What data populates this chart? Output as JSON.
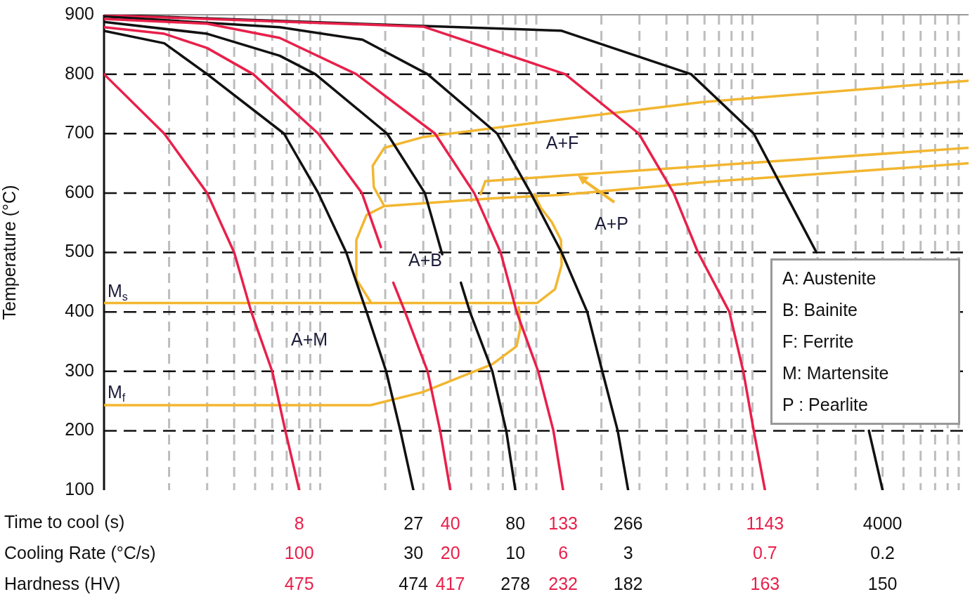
{
  "chart_data": {
    "type": "line",
    "xlabel": "Time to cool (s)",
    "ylabel": "Temperature (°C)",
    "log": "x",
    "xlim": [
      1,
      10000
    ],
    "ylim": [
      100,
      900
    ],
    "xticks": [
      8,
      27,
      40,
      80,
      133,
      266,
      1143,
      4000
    ],
    "yticks": [
      100,
      200,
      300,
      400,
      500,
      600,
      700,
      800,
      900
    ],
    "grid": true,
    "legend": false,
    "marker": "none",
    "line_style": "solid",
    "series": [
      {
        "color": "#e8204a",
        "x": [
          1,
          1.9,
          3,
          4,
          4.8,
          6,
          6.9,
          8
        ],
        "values": [
          800,
          700,
          600,
          500,
          400,
          300,
          200,
          100
        ]
      },
      {
        "color": "#111111",
        "x": [
          1,
          1.9,
          3,
          6.8,
          9.8,
          13.2,
          16.4,
          20.2,
          23.5,
          27
        ],
        "values": [
          873,
          852,
          800,
          700,
          600,
          500,
          400,
          300,
          200,
          100
        ]
      },
      {
        "color": "#e8204a",
        "x": [
          1,
          1.9,
          3,
          4.9,
          9.8,
          15.6,
          19.1,
          20.5,
          21.8,
          24.7,
          31.4,
          35.9,
          40
        ],
        "values": [
          879,
          868,
          844,
          800,
          700,
          600,
          509,
          null,
          449,
          400,
          300,
          200,
          100
        ]
      },
      {
        "color": "#111111",
        "x": [
          1,
          3,
          6.5,
          9.5,
          20.4,
          30.5,
          36.7,
          40,
          44.8,
          49.3,
          62.6,
          72.6,
          80
        ],
        "values": [
          888,
          868,
          831,
          800,
          700,
          600,
          497,
          null,
          449,
          400,
          300,
          200,
          100
        ]
      },
      {
        "color": "#e8204a",
        "x": [
          1,
          3,
          6.5,
          14.7,
          34,
          51.6,
          68.4,
          81.1,
          102,
          120,
          133
        ],
        "values": [
          893,
          885,
          861,
          800,
          700,
          600,
          500,
          400,
          300,
          200,
          100
        ]
      },
      {
        "color": "#111111",
        "x": [
          1,
          6.5,
          15.7,
          31.4,
          65.9,
          94.2,
          131,
          172,
          202,
          238,
          266
        ],
        "values": [
          897,
          879,
          858,
          800,
          700,
          600,
          500,
          400,
          300,
          200,
          100
        ]
      },
      {
        "color": "#e8204a",
        "x": [
          1,
          30,
          136,
          298,
          432,
          560,
          782,
          907,
          1014,
          1143
        ],
        "values": [
          899,
          880,
          800,
          700,
          600,
          500,
          400,
          300,
          200,
          100
        ]
      },
      {
        "color": "#111111",
        "x": [
          1,
          131,
          520,
          1014,
          1416,
          1978,
          2472,
          2979,
          3458,
          4000
        ],
        "values": [
          900,
          873,
          800,
          700,
          600,
          500,
          null,
          null,
          200,
          100
        ]
      },
      {
        "color": "#f2b630",
        "x": [
          1,
          101,
          122,
          131,
          130,
          118,
          105,
          97.7
        ],
        "values": [
          415,
          415,
          438,
          479,
          521,
          551,
          575,
          598
        ]
      },
      {
        "color": "#f2b630",
        "x": [
          1,
          17.1,
          29.8,
          62.6,
          81,
          84.3,
          83
        ],
        "values": [
          243,
          243,
          265,
          312,
          342,
          372,
          408
        ]
      },
      {
        "color": "#f2b630",
        "x": [
          17.1,
          14.7,
          14.7,
          16.4,
          19.8,
          62.6,
          131,
          581,
          10000
        ],
        "values": [
          417,
          455,
          521,
          563,
          578,
          591,
          597,
          618,
          650
        ]
      },
      {
        "color": "#f2b630",
        "x": [
          55.2,
          58.1,
          131,
          581,
          10000
        ],
        "values": [
          598,
          620,
          629,
          645,
          676
        ]
      },
      {
        "color": "#f2b630",
        "x": [
          19.8,
          17.7,
          17.5,
          19.8,
          29.8,
          131,
          581,
          10000
        ],
        "values": [
          578,
          610,
          646,
          676,
          694,
          724,
          753,
          789
        ]
      }
    ],
    "annotations": [
      "Cooling Rate (°C/s)",
      "Hardness (HV)",
      "100",
      "30",
      "20",
      "10",
      "6",
      "3",
      "0.7",
      "0.2",
      "475",
      "474",
      "417",
      "278",
      "232",
      "182",
      "163",
      "150",
      "A+F",
      "A+P",
      "A+B",
      "A+M",
      "M$_{s}$",
      "M$_{f}$",
      "A: Austenite",
      "B: Bainite",
      "F: Ferrite",
      "M: Martensite",
      "P : Pearlite"
    ]
  }
}
